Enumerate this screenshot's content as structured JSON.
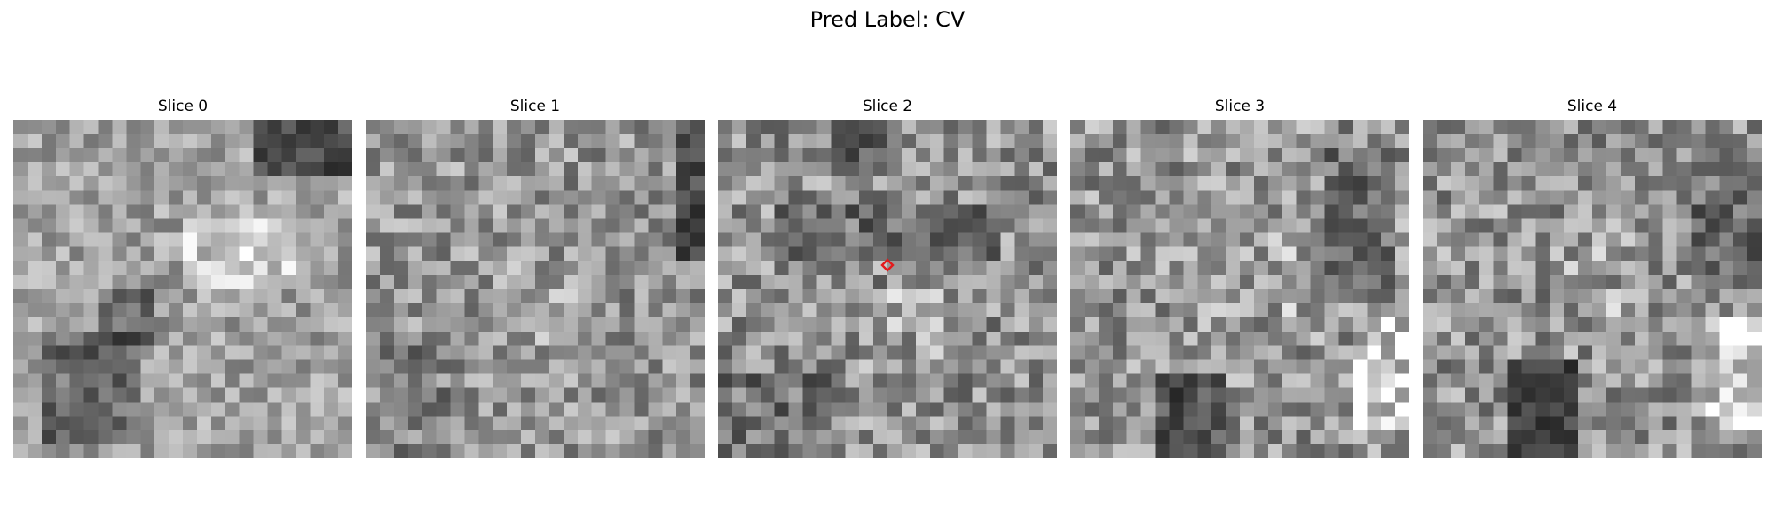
{
  "figure": {
    "title": "Pred Label: CV",
    "colormap": "gray",
    "marker_color": "#e31a1c",
    "slices": [
      {
        "title": "Slice 0"
      },
      {
        "title": "Slice 1"
      },
      {
        "title": "Slice 2"
      },
      {
        "title": "Slice 3"
      },
      {
        "title": "Slice 4"
      }
    ]
  }
}
